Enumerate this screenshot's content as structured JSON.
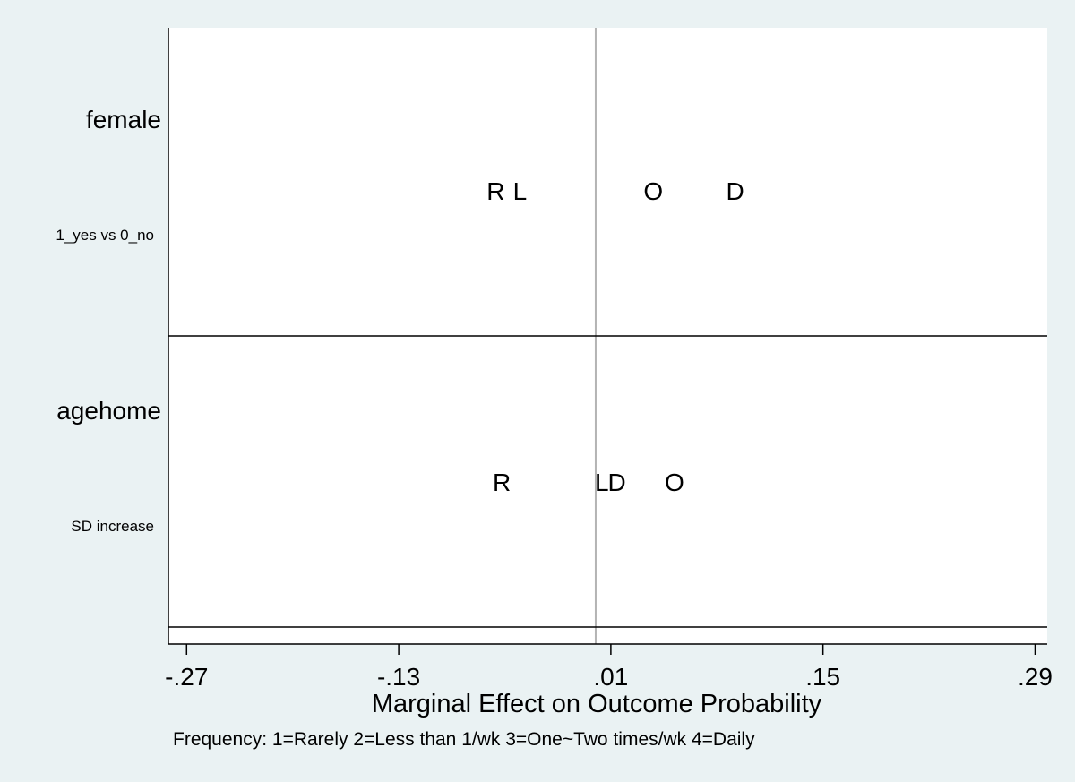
{
  "chart_data": {
    "type": "scatter",
    "xlabel": "Marginal Effect on Outcome Probability",
    "note": "Frequency: 1=Rarely 2=Less than 1/wk 3=One~Two times/wk 4=Daily",
    "xlim": [
      -0.282,
      0.298
    ],
    "x_ticks": [
      {
        "value": -0.27,
        "label": "-.27"
      },
      {
        "value": -0.13,
        "label": "-.13"
      },
      {
        "value": 0.01,
        "label": ".01"
      },
      {
        "value": 0.15,
        "label": ".15"
      },
      {
        "value": 0.29,
        "label": ".29"
      }
    ],
    "reference_line": 0,
    "grid": false,
    "panels": [
      {
        "variable": "female",
        "contrast": "1_yes vs 0_no",
        "points": [
          {
            "label": "R",
            "x": -0.066
          },
          {
            "label": "L",
            "x": -0.05
          },
          {
            "label": "O",
            "x": 0.038
          },
          {
            "label": "D",
            "x": 0.092
          }
        ]
      },
      {
        "variable": "agehome",
        "contrast": "SD increase",
        "points": [
          {
            "label": "R",
            "x": -0.062
          },
          {
            "label": "L",
            "x": 0.004
          },
          {
            "label": "D",
            "x": 0.014
          },
          {
            "label": "O",
            "x": 0.052
          }
        ]
      }
    ]
  }
}
